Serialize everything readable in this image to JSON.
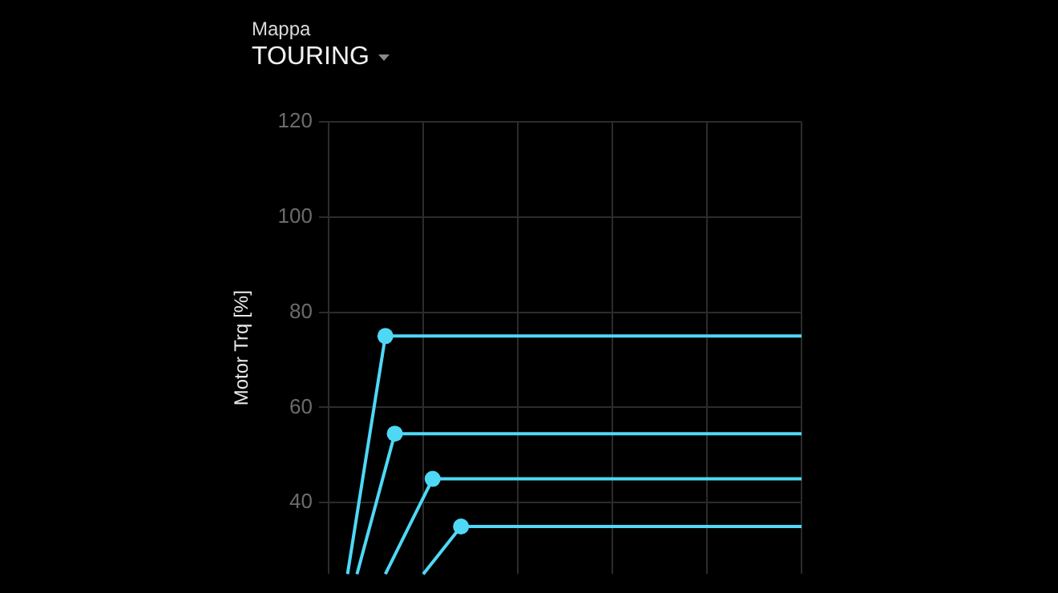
{
  "chart_data": {
    "type": "line",
    "title": "Mappa",
    "subtitle": "TOURING",
    "ylabel": "Motor Trq [%]",
    "categories": [
      null,
      null,
      null,
      null,
      null,
      null,
      null,
      null,
      null,
      null,
      null,
      null,
      null,
      null,
      null,
      null,
      null,
      null,
      null,
      null,
      null,
      null,
      null,
      null,
      null,
      null,
      null,
      null,
      null,
      null,
      null,
      null,
      null,
      null,
      null,
      null,
      null,
      null,
      null,
      null,
      null,
      null,
      null,
      null,
      null,
      null,
      null,
      null,
      null,
      null,
      null
    ],
    "ylim": [
      25,
      120
    ],
    "yticks": [
      40,
      60,
      80,
      100,
      120
    ],
    "tick_labels": "y",
    "grid": true,
    "legend": false,
    "line_style": "solid",
    "series": [
      {
        "color": "#4fd8f6",
        "marker": "none",
        "values": [
          null,
          null,
          25,
          null,
          null,
          null,
          75,
          75,
          75,
          75,
          75,
          75,
          75,
          75,
          75,
          75,
          75,
          75,
          75,
          75,
          75,
          75,
          75,
          75,
          75,
          75,
          75,
          75,
          75,
          75,
          75,
          75,
          75,
          75,
          75,
          75,
          75,
          75,
          75,
          75,
          75,
          75,
          75,
          75,
          75,
          75,
          75,
          75,
          75,
          75,
          75
        ]
      },
      {
        "color": "#4fd8f6",
        "marker": "none",
        "values": [
          null,
          null,
          null,
          25,
          null,
          null,
          null,
          54.5,
          54.5,
          54.5,
          54.5,
          54.5,
          54.5,
          54.5,
          54.5,
          54.5,
          54.5,
          54.5,
          54.5,
          54.5,
          54.5,
          54.5,
          54.5,
          54.5,
          54.5,
          54.5,
          54.5,
          54.5,
          54.5,
          54.5,
          54.5,
          54.5,
          54.5,
          54.5,
          54.5,
          54.5,
          54.5,
          54.5,
          54.5,
          54.5,
          54.5,
          54.5,
          54.5,
          54.5,
          54.5,
          54.5,
          54.5,
          54.5,
          54.5,
          54.5,
          54.5
        ]
      },
      {
        "color": "#4fd8f6",
        "marker": "none",
        "values": [
          null,
          null,
          null,
          null,
          null,
          null,
          25,
          null,
          null,
          null,
          null,
          45,
          45,
          45,
          45,
          45,
          45,
          45,
          45,
          45,
          45,
          45,
          45,
          45,
          45,
          45,
          45,
          45,
          45,
          45,
          45,
          45,
          45,
          45,
          45,
          45,
          45,
          45,
          45,
          45,
          45,
          45,
          45,
          45,
          45,
          45,
          45,
          45,
          45,
          45,
          45
        ]
      },
      {
        "color": "#4fd8f6",
        "marker": "none",
        "values": [
          null,
          null,
          null,
          null,
          null,
          null,
          null,
          null,
          null,
          null,
          25,
          null,
          null,
          null,
          35,
          35,
          35,
          35,
          35,
          35,
          35,
          35,
          35,
          35,
          35,
          35,
          35,
          35,
          35,
          35,
          35,
          35,
          35,
          35,
          35,
          35,
          35,
          35,
          35,
          35,
          35,
          35,
          35,
          35,
          35,
          35,
          35,
          35,
          35,
          35,
          35
        ]
      },
      {
        "type": "scatter",
        "color": "#4fd8f6",
        "marker": "circle",
        "values": [
          null,
          null,
          null,
          null,
          null,
          null,
          75,
          null,
          null,
          null,
          null,
          null,
          null,
          null,
          null,
          null,
          null,
          null,
          null,
          null,
          null,
          null,
          null,
          null,
          null,
          null,
          null,
          null,
          null,
          null,
          null,
          null,
          null,
          null,
          null,
          null,
          null,
          null,
          null,
          null,
          null,
          null,
          null,
          null,
          null,
          null,
          null,
          null,
          null,
          null,
          null
        ]
      },
      {
        "type": "scatter",
        "color": "#4fd8f6",
        "marker": "circle",
        "values": [
          null,
          null,
          null,
          null,
          null,
          null,
          null,
          54.5,
          null,
          null,
          null,
          null,
          null,
          null,
          null,
          null,
          null,
          null,
          null,
          null,
          null,
          null,
          null,
          null,
          null,
          null,
          null,
          null,
          null,
          null,
          null,
          null,
          null,
          null,
          null,
          null,
          null,
          null,
          null,
          null,
          null,
          null,
          null,
          null,
          null,
          null,
          null,
          null,
          null,
          null,
          null
        ]
      },
      {
        "type": "scatter",
        "color": "#4fd8f6",
        "marker": "circle",
        "values": [
          null,
          null,
          null,
          null,
          null,
          null,
          null,
          null,
          null,
          null,
          null,
          45,
          null,
          null,
          null,
          null,
          null,
          null,
          null,
          null,
          null,
          null,
          null,
          null,
          null,
          null,
          null,
          null,
          null,
          null,
          null,
          null,
          null,
          null,
          null,
          null,
          null,
          null,
          null,
          null,
          null,
          null,
          null,
          null,
          null,
          null,
          null,
          null,
          null,
          null,
          null
        ]
      },
      {
        "type": "scatter",
        "color": "#4fd8f6",
        "marker": "circle",
        "values": [
          null,
          null,
          null,
          null,
          null,
          null,
          null,
          null,
          null,
          null,
          null,
          null,
          null,
          null,
          35,
          null,
          null,
          null,
          null,
          null,
          null,
          null,
          null,
          null,
          null,
          null,
          null,
          null,
          null,
          null,
          null,
          null,
          null,
          null,
          null,
          null,
          null,
          null,
          null,
          null,
          null,
          null,
          null,
          null,
          null,
          null,
          null,
          null,
          null,
          null,
          null
        ]
      }
    ]
  }
}
